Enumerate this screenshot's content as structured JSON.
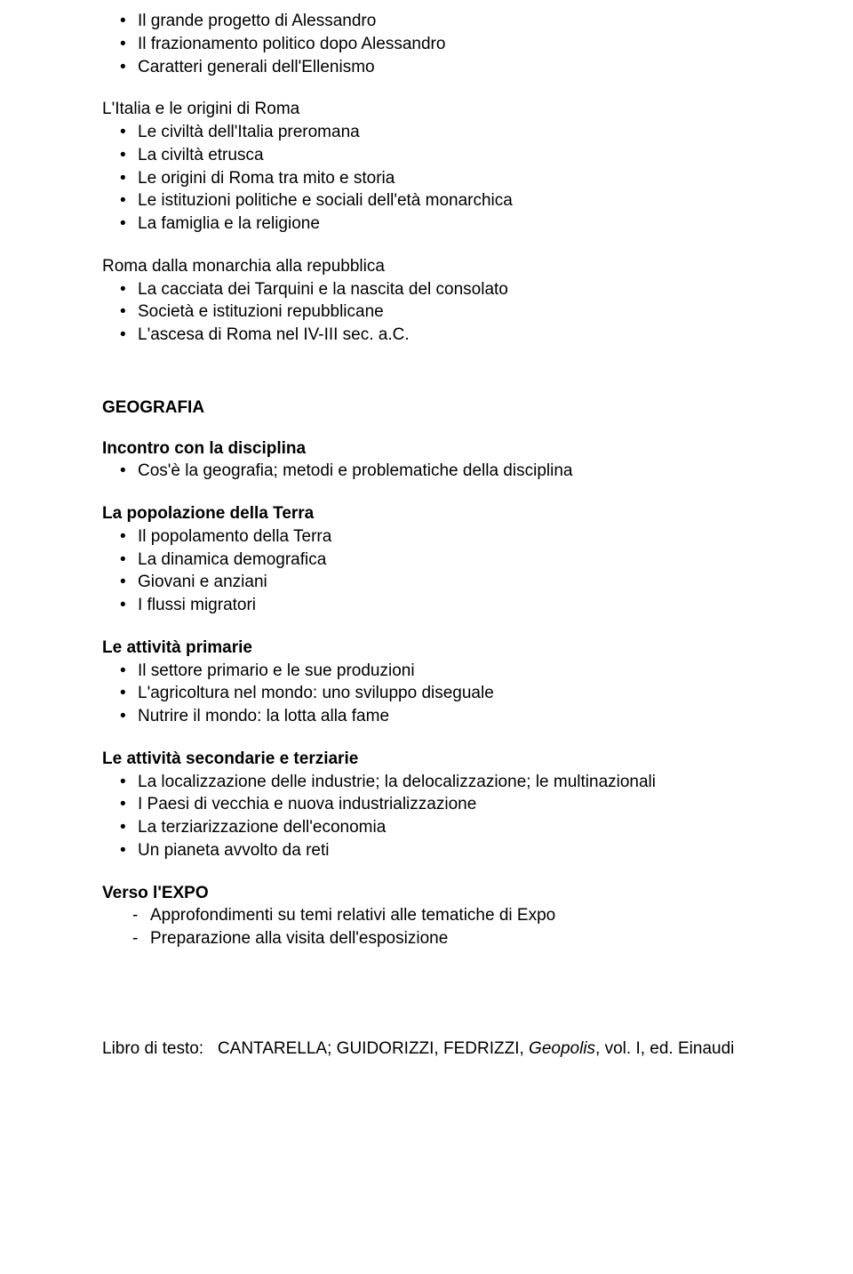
{
  "alessandro_items": [
    "Il grande progetto di Alessandro",
    "Il frazionamento politico dopo Alessandro",
    "Caratteri generali dell'Ellenismo"
  ],
  "italia_heading": "L'Italia e le origini di Roma",
  "italia_items": [
    "Le civiltà dell'Italia preromana",
    "La civiltà etrusca",
    "Le origini di Roma tra mito e storia",
    "Le istituzioni politiche e sociali dell'età monarchica",
    "La famiglia e la religione"
  ],
  "repubblica_heading": "Roma dalla monarchia alla repubblica",
  "repubblica_items": [
    "La cacciata dei Tarquini e la nascita del consolato",
    "Società e istituzioni repubblicane",
    "L'ascesa di Roma nel IV-III sec. a.C."
  ],
  "subject_heading": "GEOGRAFIA",
  "incontro_heading": "Incontro con la disciplina",
  "incontro_items": [
    "Cos'è la geografia; metodi e problematiche della disciplina"
  ],
  "popolazione_heading": "La popolazione della Terra",
  "popolazione_items": [
    "Il popolamento della Terra",
    "La dinamica demografica",
    "Giovani e anziani",
    "I flussi migratori"
  ],
  "primarie_heading": "Le attività primarie",
  "primarie_items": [
    "Il settore primario e le sue produzioni",
    "L'agricoltura nel mondo: uno sviluppo diseguale",
    "Nutrire il mondo: la lotta alla fame"
  ],
  "secondarie_heading": "Le attività secondarie e terziarie",
  "secondarie_items": [
    "La localizzazione delle industrie; la delocalizzazione; le multinazionali",
    "I Paesi di vecchia e nuova industrializzazione",
    "La terziarizzazione dell'economia",
    "Un pianeta avvolto da reti"
  ],
  "expo_heading": "Verso l'EXPO",
  "expo_items": [
    "Approfondimenti su temi relativi alle tematiche di Expo",
    "Preparazione alla visita dell'esposizione"
  ],
  "textbook_label": "Libro di testo:",
  "textbook_authors": "CANTARELLA; GUIDORIZZI, FEDRIZZI,",
  "textbook_title": "Geopolis",
  "textbook_rest": ", vol. I, ed. Einaudi"
}
